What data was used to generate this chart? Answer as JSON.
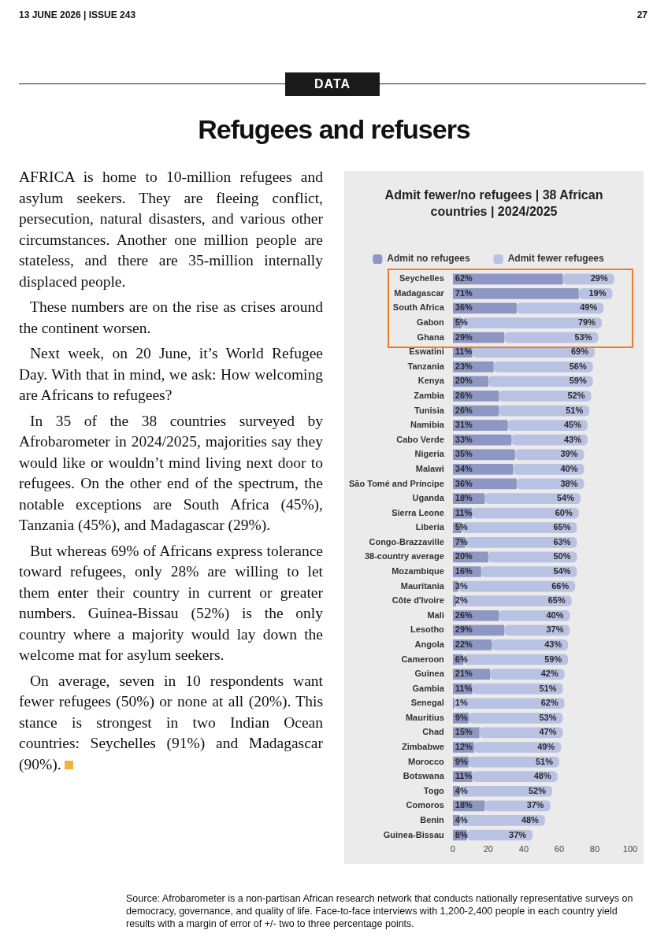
{
  "chart_data": {
    "type": "bar",
    "orientation": "horizontal",
    "stacked": true,
    "title": "Admit fewer/no refugees | 38 African countries | 2024/2025",
    "categories": [
      "Seychelles",
      "Madagascar",
      "South Africa",
      "Gabon",
      "Ghana",
      "Eswatini",
      "Tanzania",
      "Kenya",
      "Zambia",
      "Tunisia",
      "Namibia",
      "Cabo Verde",
      "Nigeria",
      "Malawi",
      "São Tomé and Príncipe",
      "Uganda",
      "Sierra Leone",
      "Liberia",
      "Congo-Brazzaville",
      "38-country average",
      "Mozambique",
      "Mauritania",
      "Côte d'Ivoire",
      "Mali",
      "Lesotho",
      "Angola",
      "Cameroon",
      "Guinea",
      "Gambia",
      "Senegal",
      "Mauritius",
      "Chad",
      "Zimbabwe",
      "Morocco",
      "Botswana",
      "Togo",
      "Comoros",
      "Benin",
      "Guinea-Bissau"
    ],
    "series": [
      {
        "name": "Admit no refugees",
        "color": "#8e96c4",
        "values": [
          62,
          71,
          36,
          5,
          29,
          11,
          23,
          20,
          26,
          26,
          31,
          33,
          35,
          34,
          36,
          18,
          11,
          5,
          7,
          20,
          16,
          3,
          2,
          26,
          29,
          22,
          6,
          21,
          11,
          1,
          9,
          15,
          12,
          9,
          11,
          4,
          18,
          4,
          8
        ],
        "value_labels": [
          "62%",
          "71%",
          "36%",
          "5%",
          "29%",
          "11%",
          "23%",
          "20%",
          "26%",
          "26%",
          "31%",
          "33%",
          "35%",
          "34%",
          "36%",
          "18%",
          "11%",
          "5%",
          "7%",
          "20%",
          "16%",
          "3%",
          "2%",
          "26%",
          "29%",
          "22%",
          "6%",
          "21%",
          "11%",
          "1%",
          "9%",
          "15%",
          "12%",
          "9%",
          "11%",
          "4%",
          "18%",
          "4%",
          "8%"
        ]
      },
      {
        "name": "Admit fewer refugees",
        "color": "#b9c2e2",
        "values": [
          29,
          19,
          49,
          79,
          53,
          69,
          56,
          59,
          52,
          51,
          45,
          43,
          39,
          40,
          38,
          54,
          60,
          65,
          63,
          50,
          54,
          66,
          65,
          40,
          37,
          43,
          59,
          42,
          51,
          62,
          53,
          47,
          49,
          51,
          48,
          52,
          37,
          48,
          37
        ],
        "value_labels": [
          "29%",
          "19%",
          "49%",
          "79%",
          "53%",
          "69%",
          "56%",
          "59%",
          "52%",
          "51%",
          "45%",
          "43%",
          "39%",
          "40%",
          "38%",
          "54%",
          "60%",
          "65%",
          "63%",
          "50%",
          "54%",
          "66%",
          "65%",
          "40%",
          "37%",
          "43%",
          "59%",
          "42%",
          "51%",
          "62%",
          "53%",
          "47%",
          "49%",
          "51%",
          "48%",
          "52%",
          "37%",
          "48%",
          "37%"
        ]
      }
    ],
    "xlim": [
      0,
      100
    ],
    "xticks": [
      0,
      20,
      40,
      60,
      80,
      100
    ],
    "grid": false,
    "legend": "top",
    "annotations": [
      "13 JUNE 2026 | ISSUE 243",
      "27",
      "DATA",
      "Refugees and refusers",
      "AFRICA is home to 10-million refugees and asylum seekers. They are fleeing conflict, persecution, natural disasters, and various other circumstances. Another one million people are stateless, and there are 35-million internally displaced people.",
      "These numbers are on the rise as crises around the continent worsen.",
      "Next week, on 20 June, it’s World Refugee Day. With that in mind, we ask: How welcoming are Africans to refugees?",
      "In 35 of the 38 countries surveyed by Afrobarometer in 2024/2025, majorities say they would like or wouldn’t mind living next door to refugees. On the other end of the spectrum, the notable exceptions are South Africa (45%), Tanzania (45%), and Madagascar (29%).",
      "But whereas 69% of Africans express tolerance toward refugees, only 28% are willing to let them enter their country in current or greater numbers. Guinea-Bissau (52%) is the only country where a majority would lay down the welcome mat for asylum seekers.",
      "On average, seven in 10 respondents want fewer refugees (50%) or none at all (20%). This stance is strongest in two Indian Ocean countries: Seychelles (91%) and Madagascar (90%).",
      "Source: Afrobarometer is a non-partisan African research network that conducts nationally representative surveys on democracy, governance, and quality of life. Face-to-face interviews with 1,200-2,400 people in each country yield results with a margin of error of +/- two to three percentage points."
    ]
  }
}
